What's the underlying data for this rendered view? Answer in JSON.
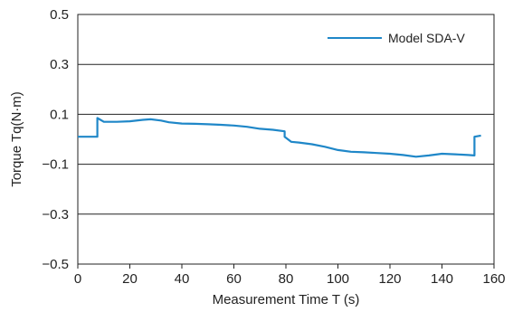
{
  "chart_data": {
    "type": "line",
    "title": "",
    "xlabel": "Measurement Time T (s)",
    "ylabel": "Torque Tq(N·m)",
    "xlim": [
      0,
      160
    ],
    "ylim": [
      -0.5,
      0.5
    ],
    "xticks": [
      0,
      20,
      40,
      60,
      80,
      100,
      120,
      140,
      160
    ],
    "xtick_labels": [
      "0",
      "20",
      "40",
      "60",
      "80",
      "100",
      "120",
      "140",
      "160"
    ],
    "yticks": [
      -0.5,
      -0.3,
      -0.1,
      0.1,
      0.3,
      0.5
    ],
    "ytick_labels": [
      "−0.5",
      "−0.3",
      "−0.1",
      "0.1",
      "0.3",
      "0.5"
    ],
    "grid": "horizontal",
    "legend_position": "top-right",
    "series": [
      {
        "name": "Model SDA-V",
        "color": "#1f87c8",
        "x": [
          0,
          7.5,
          7.5,
          10,
          15,
          20,
          25,
          28,
          32,
          35,
          40,
          45,
          50,
          55,
          60,
          65,
          70,
          75,
          79.5,
          79.5,
          82,
          85,
          90,
          95,
          100,
          105,
          110,
          115,
          120,
          125,
          130,
          135,
          140,
          145,
          150,
          152.5,
          152.5,
          155
        ],
        "y": [
          0.01,
          0.01,
          0.085,
          0.07,
          0.07,
          0.072,
          0.078,
          0.08,
          0.075,
          0.068,
          0.063,
          0.062,
          0.06,
          0.058,
          0.055,
          0.05,
          0.042,
          0.038,
          0.032,
          0.01,
          -0.01,
          -0.013,
          -0.02,
          -0.03,
          -0.043,
          -0.05,
          -0.052,
          -0.055,
          -0.058,
          -0.063,
          -0.07,
          -0.065,
          -0.058,
          -0.06,
          -0.063,
          -0.065,
          0.01,
          0.015
        ]
      }
    ]
  }
}
